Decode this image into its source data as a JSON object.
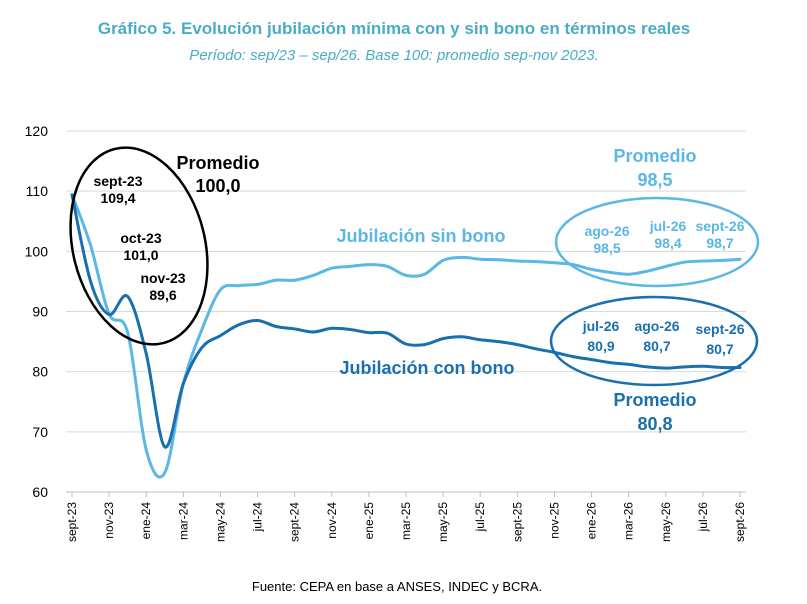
{
  "title": "Gráfico 5. Evolución jubilación mínima con y sin bono en términos reales",
  "subtitle": "Período: sep/23 – sep/26. Base 100: promedio sep-nov 2023.",
  "source": "Fuente: CEPA en base a ANSES, INDEC y BCRA.",
  "colors": {
    "sin_bono": "#5bb7e4",
    "con_bono": "#1a6fae",
    "title": "#4aacc6",
    "grid": "#d9d9d9"
  },
  "chart_data": {
    "type": "line",
    "ylim": [
      60,
      120
    ],
    "yticks": [
      60,
      70,
      80,
      90,
      100,
      110,
      120
    ],
    "x_tick_labels": [
      "sept-23",
      "nov-23",
      "ene-24",
      "mar-24",
      "may-24",
      "jul-24",
      "sept-24",
      "nov-24",
      "ene-25",
      "mar-25",
      "may-25",
      "jul-25",
      "sept-25",
      "nov-25",
      "ene-26",
      "mar-26",
      "may-26",
      "jul-26",
      "sept-26"
    ],
    "months": [
      "sept-23",
      "oct-23",
      "nov-23",
      "dic-23",
      "ene-24",
      "feb-24",
      "mar-24",
      "abr-24",
      "may-24",
      "jun-24",
      "jul-24",
      "ago-24",
      "sept-24",
      "oct-24",
      "nov-24",
      "dic-24",
      "ene-25",
      "feb-25",
      "mar-25",
      "abr-25",
      "may-25",
      "jun-25",
      "jul-25",
      "ago-25",
      "sept-25",
      "oct-25",
      "nov-25",
      "dic-25",
      "ene-26",
      "feb-26",
      "mar-26",
      "abr-26",
      "may-26",
      "jun-26",
      "jul-26",
      "ago-26",
      "sept-26"
    ],
    "series": [
      {
        "name": "Jubilación sin bono",
        "color": "#5bb7e4",
        "values": [
          109.4,
          101.0,
          89.6,
          86.5,
          67,
          63.2,
          78,
          87,
          93.6,
          94.3,
          94.5,
          95.2,
          95.2,
          96,
          97.2,
          97.5,
          97.8,
          97.5,
          96,
          96.2,
          98.5,
          99,
          98.7,
          98.6,
          98.4,
          98.3,
          98.1,
          97.8,
          97,
          96.5,
          96.2,
          96.7,
          97.5,
          98.2,
          98.4,
          98.5,
          98.7
        ]
      },
      {
        "name": "Jubilación con bono",
        "color": "#1a6fae",
        "values": [
          109.4,
          95,
          89.5,
          92.5,
          83,
          67.5,
          78,
          84,
          86,
          87.8,
          88.5,
          87.5,
          87.1,
          86.6,
          87.2,
          87,
          86.5,
          86.4,
          84.6,
          84.5,
          85.5,
          85.8,
          85.3,
          85,
          84.5,
          83.8,
          83.2,
          82.5,
          82,
          81.5,
          81.2,
          80.8,
          80.6,
          80.8,
          80.9,
          80.7,
          80.7
        ]
      }
    ],
    "annotations": {
      "series_label_sin": "Jubilación sin bono",
      "series_label_con": "Jubilación con bono",
      "left_avg_label": "Promedio",
      "left_avg_value": "100,0",
      "left_points": [
        {
          "label": "sept-23",
          "value": "109,4"
        },
        {
          "label": "oct-23",
          "value": "101,0"
        },
        {
          "label": "nov-23",
          "value": "89,6"
        }
      ],
      "top_right_avg_label": "Promedio",
      "top_right_avg_value": "98,5",
      "top_right_points": [
        {
          "label": "ago-26",
          "value": "98,5"
        },
        {
          "label": "jul-26",
          "value": "98,4"
        },
        {
          "label": "sept-26",
          "value": "98,7"
        }
      ],
      "bottom_right_avg_label": "Promedio",
      "bottom_right_avg_value": "80,8",
      "bottom_right_points": [
        {
          "label": "jul-26",
          "value": "80,9"
        },
        {
          "label": "ago-26",
          "value": "80,7"
        },
        {
          "label": "sept-26",
          "value": "80,7"
        }
      ]
    }
  }
}
